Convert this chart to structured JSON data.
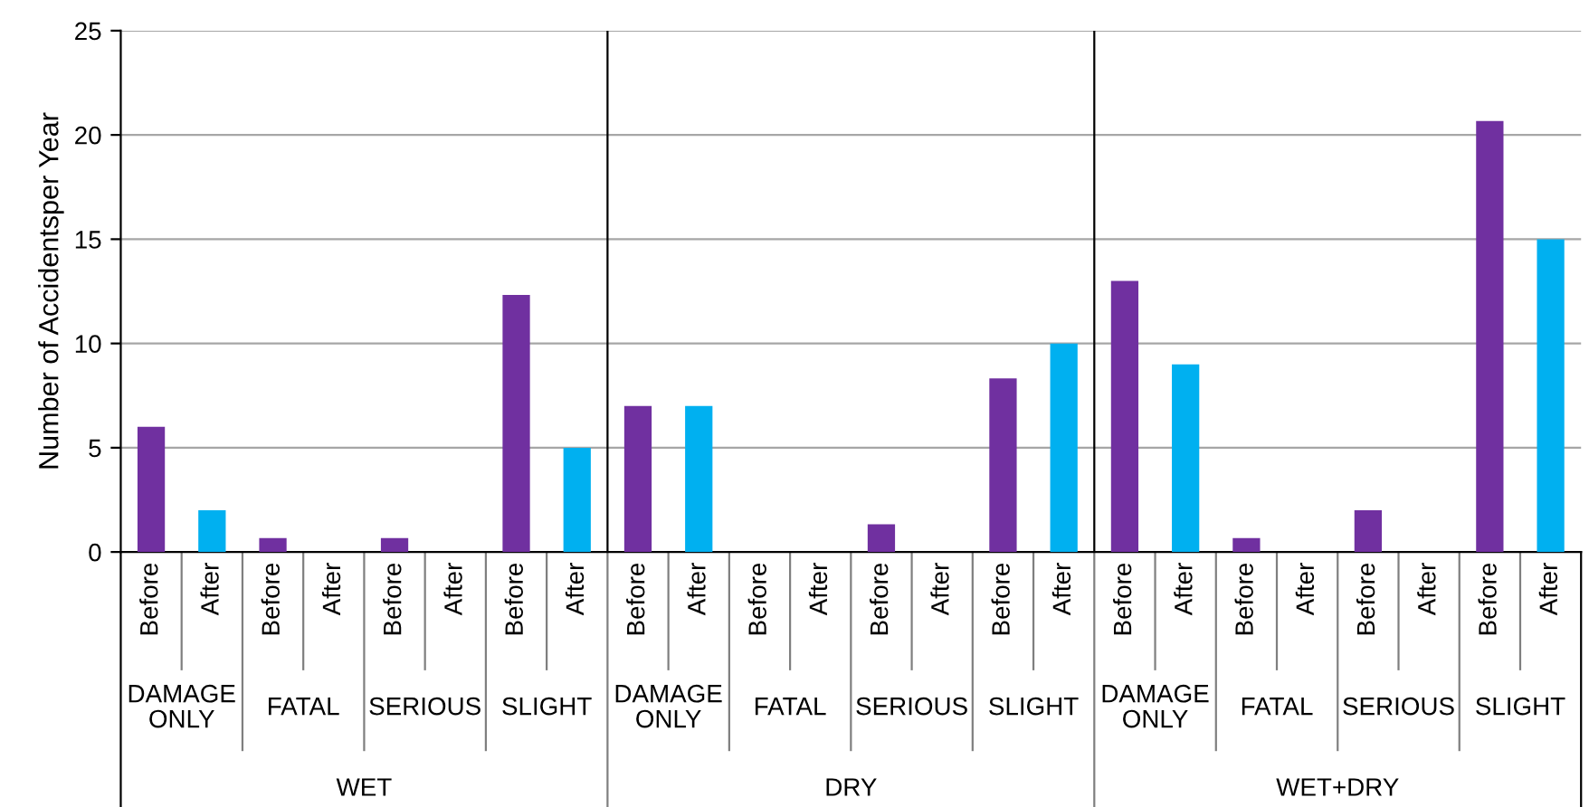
{
  "chart_data": {
    "type": "bar",
    "ylabel": "Number of Accidentsper Year",
    "categories": [
      "Before",
      "After",
      "Before",
      "After",
      "Before",
      "After",
      "Before",
      "After",
      "Before",
      "After",
      "Before",
      "After",
      "Before",
      "After",
      "Before",
      "After",
      "Before",
      "After",
      "Before",
      "After",
      "Before",
      "After",
      "Before",
      "After"
    ],
    "values": [
      6,
      2,
      0.67,
      0,
      0.67,
      0,
      12.33,
      5,
      7,
      7,
      0,
      0,
      1.33,
      0,
      8.33,
      10,
      13,
      9,
      0.67,
      0,
      2,
      0,
      20.67,
      15
    ],
    "colors": [
      "#7030a0",
      "#00b0f0",
      "#7030a0",
      "#00b0f0",
      "#7030a0",
      "#00b0f0",
      "#7030a0",
      "#00b0f0",
      "#7030a0",
      "#00b0f0",
      "#7030a0",
      "#00b0f0",
      "#7030a0",
      "#00b0f0",
      "#7030a0",
      "#00b0f0",
      "#7030a0",
      "#00b0f0",
      "#7030a0",
      "#00b0f0",
      "#7030a0",
      "#00b0f0",
      "#7030a0",
      "#00b0f0"
    ],
    "ylim": [
      0,
      25
    ],
    "yticks": [
      0,
      5,
      10,
      15,
      20,
      25
    ],
    "grid": "y",
    "annotations": [
      "DAMAGE\nONLY",
      "FATAL",
      "SERIOUS",
      "SLIGHT",
      "DAMAGE\nONLY",
      "FATAL",
      "SERIOUS",
      "SLIGHT",
      "DAMAGE\nONLY",
      "FATAL",
      "SERIOUS",
      "SLIGHT",
      "WET",
      "DRY",
      "WET+DRY"
    ]
  }
}
